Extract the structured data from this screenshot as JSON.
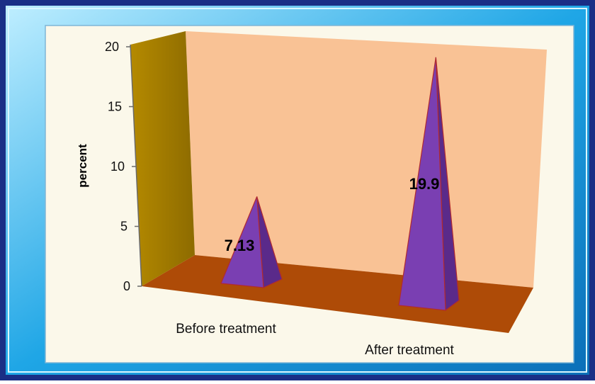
{
  "chart_data": {
    "type": "bar",
    "bar_shape": "3d-pyramid",
    "categories": [
      "Before treatment",
      "After treatment"
    ],
    "values": [
      7.13,
      19.9
    ],
    "data_labels": [
      "7.13",
      "19.9"
    ],
    "ylabel": "percent",
    "xlabel": "",
    "ylim": [
      0,
      20
    ],
    "yticks": [
      0,
      5,
      10,
      15,
      20
    ],
    "ytick_labels": [
      "0",
      "5",
      "10",
      "15",
      "20"
    ],
    "grid": false,
    "legend": "none"
  },
  "colors": {
    "frame_outer": "#1a2f86",
    "frame_blue": "#1fa6e6",
    "frame_light": "#9fe0ff",
    "plot_background": "#fbf8ea",
    "back_wall": "#f9c295",
    "side_wall": "#a37d00",
    "floor": "#ae4b07",
    "pyramid_front": "#7a3fb2",
    "pyramid_side": "#5a2a8a",
    "pyramid_edge": "#b02a30"
  }
}
